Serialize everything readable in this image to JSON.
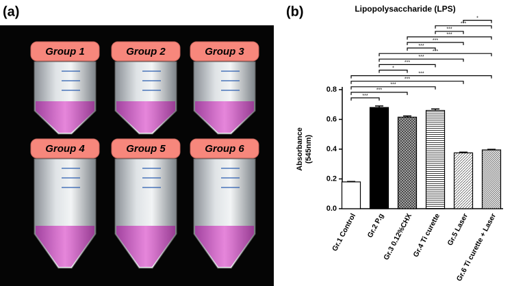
{
  "panel_a": {
    "label": "(a)",
    "groups": [
      "Group 1",
      "Group 2",
      "Group 3",
      "Group 4",
      "Group 5",
      "Group 6"
    ]
  },
  "chart_data": {
    "type": "bar",
    "panel_label": "(b)",
    "title": "Lipopolysaccharide (LPS)",
    "ylabel": [
      "Absorbance",
      "(545nm)"
    ],
    "categories": [
      "Gr.1 Control",
      "Gr.2 P.g",
      "Gr.3 0.12%CHX",
      "Gr.4 Ti curette",
      "Gr.5 Laser",
      "Gr.6 Ti curette + Laser"
    ],
    "values": [
      0.18,
      0.68,
      0.615,
      0.66,
      0.375,
      0.395
    ],
    "errors": [
      0.003,
      0.01,
      0.008,
      0.01,
      0.005,
      0.004
    ],
    "patterns": [
      "none",
      "solid",
      "crosshatch",
      "horizontal",
      "diagonal",
      "dense"
    ],
    "color": "#000000",
    "ylim": [
      0,
      0.8
    ],
    "yticks": [
      {
        "value": 0,
        "label": "0.0"
      },
      0.2,
      0.4,
      0.6,
      0.8
    ],
    "significance": [
      {
        "from": 0,
        "to": 1,
        "label": "***"
      },
      {
        "from": 0,
        "to": 2,
        "label": "***"
      },
      {
        "from": 0,
        "to": 3,
        "label": "***"
      },
      {
        "from": 0,
        "to": 4,
        "label": "***"
      },
      {
        "from": 0,
        "to": 5,
        "label": "***"
      },
      {
        "from": 1,
        "to": 2,
        "label": "*"
      },
      {
        "from": 1,
        "to": 3,
        "label": "***"
      },
      {
        "from": 1,
        "to": 4,
        "label": "***"
      },
      {
        "from": 1,
        "to": 5,
        "label": "***"
      },
      {
        "from": 2,
        "to": 3,
        "label": "***"
      },
      {
        "from": 2,
        "to": 4,
        "label": "***"
      },
      {
        "from": 2,
        "to": 5,
        "label": "***"
      },
      {
        "from": 3,
        "to": 4,
        "label": "***"
      },
      {
        "from": 3,
        "to": 5,
        "label": "***"
      },
      {
        "from": 4,
        "to": 5,
        "label": "*"
      }
    ]
  }
}
